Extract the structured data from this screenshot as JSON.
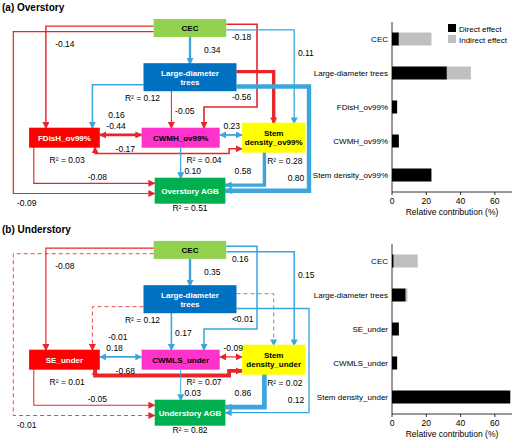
{
  "diagrams": [
    {
      "title": "(a) Overstory",
      "nodes": [
        {
          "label": "CEC",
          "color": "#92d050"
        },
        {
          "label": "Large-diameter trees",
          "color": "#0070c0",
          "r2": "R² = 0.12"
        },
        {
          "label": "FDisH_ov99%",
          "color": "#ff0000",
          "r2": "R² = 0.03"
        },
        {
          "label": "CWMH_ov99%",
          "color": "#ff33cc",
          "r2": "R² = 0.04"
        },
        {
          "label": "Stem density_ov99%",
          "color": "#ffff00",
          "r2": "R² = 0.28"
        },
        {
          "label": "Overstory AGB",
          "color": "#00b050",
          "r2": "R² = 0.51"
        }
      ],
      "edges": [
        {
          "from": 0,
          "to": 1,
          "label": "0.34",
          "color": "#3aa6dd"
        },
        {
          "from": 0,
          "to": 2,
          "label": "-0.14",
          "color": "#e8262a"
        },
        {
          "from": 0,
          "to": 5,
          "label": "-0.09",
          "color": "#e8262a"
        },
        {
          "from": 0,
          "to": 3,
          "label": "-0.18",
          "color": "#e8262a"
        },
        {
          "from": 0,
          "to": 4,
          "label": "0.11",
          "color": "#3aa6dd"
        },
        {
          "from": 1,
          "to": 2,
          "label": "0.16",
          "color": "#3aa6dd"
        },
        {
          "from": 1,
          "to": 3,
          "label": "-0.05",
          "color": "#e8262a"
        },
        {
          "from": 1,
          "to": 4,
          "label": "-0.56",
          "color": "#e8262a"
        },
        {
          "from": 1,
          "to": 5,
          "label": "0.80",
          "color": "#3aa6dd"
        },
        {
          "from": 2,
          "to": 3,
          "label": "-0.44",
          "color": "#e8262a",
          "arrow": "both"
        },
        {
          "from": 4,
          "to": 2,
          "label": "-0.17",
          "color": "#e8262a",
          "arrow": "both"
        },
        {
          "from": 3,
          "to": 4,
          "label": "0.23",
          "color": "#3aa6dd",
          "arrow": "both"
        },
        {
          "from": 2,
          "to": 5,
          "label": "-0.08",
          "color": "#e8262a"
        },
        {
          "from": 3,
          "to": 5,
          "label": "0.10",
          "color": "#3aa6dd"
        },
        {
          "from": 4,
          "to": 5,
          "label": "0.58",
          "color": "#3aa6dd"
        }
      ]
    },
    {
      "title": "(b) Understory",
      "nodes": [
        {
          "label": "CEC",
          "color": "#92d050"
        },
        {
          "label": "Large-diameter trees",
          "color": "#0070c0",
          "r2": "R² = 0.12"
        },
        {
          "label": "SE_under",
          "color": "#ff0000",
          "r2": "R² = 0.01"
        },
        {
          "label": "CWMLS_under",
          "color": "#ff33cc",
          "r2": "R² = 0.07"
        },
        {
          "label": "Stem density_under",
          "color": "#ffff00",
          "r2": "R² = 0.02"
        },
        {
          "label": "Understory AGB",
          "color": "#00b050",
          "r2": "R² = 0.82"
        }
      ],
      "edges": [
        {
          "from": 0,
          "to": 1,
          "label": "0.35",
          "color": "#3aa6dd"
        },
        {
          "from": 0,
          "to": 2,
          "label": "-0.08",
          "color": "#e8262a"
        },
        {
          "from": 0,
          "to": 5,
          "label": "-0.01",
          "color": "#e8262a",
          "line_style": "dashed"
        },
        {
          "from": 0,
          "to": 3,
          "label": "0.16",
          "color": "#3aa6dd"
        },
        {
          "from": 0,
          "to": 4,
          "label": "0.15",
          "color": "#3aa6dd"
        },
        {
          "from": 1,
          "to": 2,
          "label": "-0.01",
          "color": "#e8262a",
          "line_style": "dashed"
        },
        {
          "from": 1,
          "to": 3,
          "label": "0.17",
          "color": "#3aa6dd"
        },
        {
          "from": 1,
          "to": 4,
          "label": "<0.01",
          "color": "#3aa6dd",
          "line_style": "dashed"
        },
        {
          "from": 1,
          "to": 5,
          "label": "0.12",
          "color": "#3aa6dd"
        },
        {
          "from": 2,
          "to": 3,
          "label": "0.18",
          "color": "#3aa6dd",
          "arrow": "both"
        },
        {
          "from": 4,
          "to": 2,
          "label": "-0.68",
          "color": "#e8262a",
          "arrow": "both"
        },
        {
          "from": 3,
          "to": 4,
          "label": "-0.09",
          "color": "#e8262a",
          "arrow": "both"
        },
        {
          "from": 2,
          "to": 5,
          "label": "-0.05",
          "color": "#e8262a"
        },
        {
          "from": 3,
          "to": 5,
          "label": "0.03",
          "color": "#3aa6dd"
        },
        {
          "from": 4,
          "to": 5,
          "label": "0.86",
          "color": "#3aa6dd"
        }
      ]
    }
  ],
  "chart_data": [
    {
      "type": "bar",
      "orientation": "horizontal",
      "stacked": true,
      "categories": [
        "CEC",
        "Large-diameter trees",
        "FDisH_ov99%",
        "CWMH_ov99%",
        "Stem density_ov99%"
      ],
      "series": [
        {
          "name": "Direct effect",
          "color": "#000000",
          "values": [
            4,
            32,
            3,
            4,
            23
          ]
        },
        {
          "name": "Indirect effect",
          "color": "#bfbfbf",
          "values": [
            19,
            14,
            0,
            0,
            0
          ]
        }
      ],
      "xlabel": "Relative contribution (%)",
      "xlim": [
        0,
        70
      ],
      "xticks": [
        0,
        20,
        40,
        60
      ],
      "legend": "upper right"
    },
    {
      "type": "bar",
      "orientation": "horizontal",
      "stacked": true,
      "categories": [
        "CEC",
        "Large-diameter trees",
        "SE_under",
        "CWMLS_under",
        "Stem density_under"
      ],
      "series": [
        {
          "color": "#000000",
          "values": [
            1,
            8,
            4,
            3,
            69
          ]
        },
        {
          "color": "#bfbfbf",
          "values": [
            14,
            1,
            0,
            0,
            0
          ]
        }
      ],
      "xlabel": "Relative contribution (%)",
      "xlim": [
        0,
        70
      ],
      "xticks": [
        0,
        20,
        40,
        60
      ]
    }
  ]
}
